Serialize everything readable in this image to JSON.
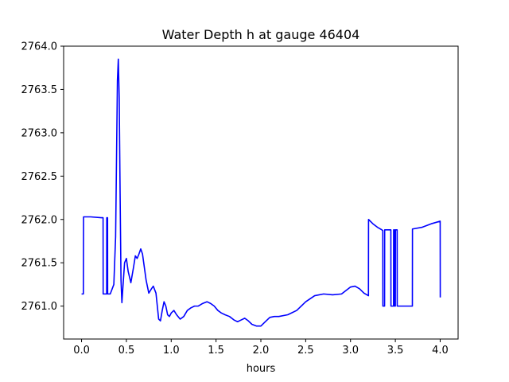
{
  "chart_data": {
    "type": "line",
    "title": "Water Depth h at gauge 46404",
    "xlabel": "hours",
    "ylabel": "",
    "xlim": [
      -0.2,
      4.2
    ],
    "ylim": [
      2760.62,
      2764.0
    ],
    "xticks": [
      0.0,
      0.5,
      1.0,
      1.5,
      2.0,
      2.5,
      3.0,
      3.5,
      4.0
    ],
    "xtick_labels": [
      "0.0",
      "0.5",
      "1.0",
      "1.5",
      "2.0",
      "2.5",
      "3.0",
      "3.5",
      "4.0"
    ],
    "yticks": [
      2761.0,
      2761.5,
      2762.0,
      2762.5,
      2763.0,
      2763.5,
      2764.0
    ],
    "ytick_labels": [
      "2761.0",
      "2761.5",
      "2762.0",
      "2762.5",
      "2763.0",
      "2763.5",
      "2764.0"
    ],
    "grid": false,
    "series": [
      {
        "color": "#0000ff",
        "x": [
          0.0,
          0.02,
          0.022,
          0.1,
          0.22,
          0.24,
          0.241,
          0.28,
          0.281,
          0.29,
          0.291,
          0.3,
          0.301,
          0.32,
          0.36,
          0.38,
          0.39,
          0.4,
          0.41,
          0.42,
          0.43,
          0.44,
          0.45,
          0.46,
          0.48,
          0.5,
          0.52,
          0.55,
          0.58,
          0.6,
          0.62,
          0.64,
          0.66,
          0.68,
          0.7,
          0.72,
          0.75,
          0.78,
          0.8,
          0.83,
          0.86,
          0.88,
          0.9,
          0.92,
          0.94,
          0.96,
          0.98,
          1.0,
          1.03,
          1.06,
          1.1,
          1.14,
          1.18,
          1.22,
          1.26,
          1.3,
          1.35,
          1.4,
          1.44,
          1.48,
          1.52,
          1.56,
          1.6,
          1.65,
          1.7,
          1.74,
          1.78,
          1.82,
          1.86,
          1.9,
          1.95,
          2.0,
          2.05,
          2.1,
          2.15,
          2.2,
          2.3,
          2.4,
          2.5,
          2.6,
          2.7,
          2.8,
          2.9,
          3.0,
          3.05,
          3.1,
          3.15,
          3.2,
          3.201,
          3.25,
          3.3,
          3.35,
          3.36,
          3.361,
          3.38,
          3.381,
          3.4,
          3.44,
          3.45,
          3.451,
          3.48,
          3.481,
          3.49,
          3.491,
          3.5,
          3.501,
          3.52,
          3.521,
          3.6,
          3.68,
          3.69,
          3.691,
          3.8,
          3.9,
          4.0,
          4.001
        ],
        "y": [
          2761.14,
          2761.14,
          2762.03,
          2762.03,
          2762.02,
          2762.02,
          2761.14,
          2761.14,
          2762.02,
          2762.02,
          2761.14,
          2761.14,
          2761.14,
          2761.14,
          2761.25,
          2761.8,
          2762.7,
          2763.6,
          2763.85,
          2763.4,
          2762.3,
          2761.3,
          2761.04,
          2761.2,
          2761.5,
          2761.55,
          2761.4,
          2761.27,
          2761.45,
          2761.58,
          2761.55,
          2761.6,
          2761.66,
          2761.6,
          2761.45,
          2761.3,
          2761.15,
          2761.2,
          2761.23,
          2761.15,
          2760.85,
          2760.83,
          2760.95,
          2761.05,
          2761.0,
          2760.9,
          2760.88,
          2760.92,
          2760.95,
          2760.9,
          2760.85,
          2760.88,
          2760.95,
          2760.98,
          2761.0,
          2761.0,
          2761.03,
          2761.05,
          2761.03,
          2761.0,
          2760.95,
          2760.92,
          2760.9,
          2760.88,
          2760.84,
          2760.82,
          2760.84,
          2760.86,
          2760.83,
          2760.79,
          2760.77,
          2760.77,
          2760.82,
          2760.87,
          2760.88,
          2760.88,
          2760.9,
          2760.95,
          2761.05,
          2761.12,
          2761.14,
          2761.13,
          2761.14,
          2761.22,
          2761.23,
          2761.2,
          2761.15,
          2761.12,
          2762.0,
          2761.95,
          2761.91,
          2761.88,
          2761.87,
          2761.0,
          2761.0,
          2761.88,
          2761.88,
          2761.88,
          2761.88,
          2761.0,
          2761.0,
          2761.88,
          2761.88,
          2761.0,
          2761.0,
          2761.88,
          2761.88,
          2761.0,
          2761.0,
          2761.0,
          2761.0,
          2761.89,
          2761.91,
          2761.95,
          2761.98,
          2761.1
        ]
      }
    ]
  }
}
